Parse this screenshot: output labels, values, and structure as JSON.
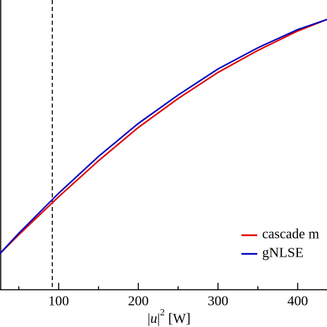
{
  "chart_data": {
    "type": "line",
    "xlabel": {
      "bar_left": "|",
      "var": "u",
      "bar_right": "|",
      "sup": "2",
      "unit": " [W]"
    },
    "x": [
      26,
      50,
      100,
      150,
      200,
      250,
      300,
      350,
      400,
      437
    ],
    "series": [
      {
        "name": "cascade m",
        "color": "#e00000",
        "values": [
          0.124,
          0.19,
          0.321,
          0.445,
          0.56,
          0.66,
          0.75,
          0.826,
          0.893,
          0.933
        ]
      },
      {
        "name": "gNLSE",
        "color": "#0000c0",
        "values": [
          0.124,
          0.195,
          0.333,
          0.46,
          0.574,
          0.672,
          0.762,
          0.835,
          0.898,
          0.933
        ]
      }
    ],
    "xlim": [
      26.4,
      436.8
    ],
    "ylim": [
      0,
      1
    ],
    "xticks": [
      100,
      200,
      300,
      400
    ],
    "xminorticks": [
      50,
      150,
      250,
      350
    ],
    "vline": 92,
    "legend": "lower right"
  }
}
